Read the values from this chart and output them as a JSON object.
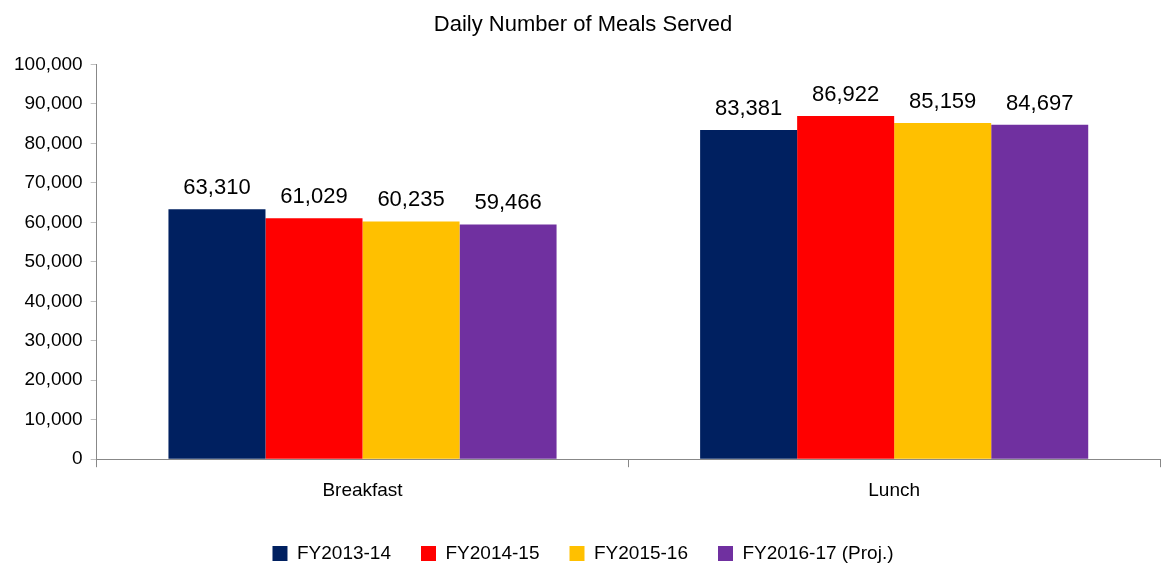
{
  "chart_data": {
    "type": "bar",
    "title": "Daily Number of Meals Served",
    "categories": [
      "Breakfast",
      "Lunch"
    ],
    "series": [
      {
        "name": "FY2013-14",
        "color": "#002060",
        "values": [
          63310,
          83381
        ],
        "value_labels": [
          "63,310",
          "83,381"
        ]
      },
      {
        "name": "FY2014-15",
        "color": "#ff0000",
        "values": [
          61029,
          86922
        ],
        "value_labels": [
          "61,029",
          "86,922"
        ]
      },
      {
        "name": "FY2015-16",
        "color": "#ffc000",
        "values": [
          60235,
          85159
        ],
        "value_labels": [
          "60,235",
          "85,159"
        ]
      },
      {
        "name": "FY2016-17 (Proj.)",
        "color": "#7030a0",
        "values": [
          59466,
          84697
        ],
        "value_labels": [
          "59,466",
          "84,697"
        ]
      }
    ],
    "ylim": [
      0,
      100000
    ],
    "yticks": [
      {
        "value": 0,
        "label": "0"
      },
      {
        "value": 10000,
        "label": "10,000"
      },
      {
        "value": 20000,
        "label": "20,000"
      },
      {
        "value": 30000,
        "label": "30,000"
      },
      {
        "value": 40000,
        "label": "40,000"
      },
      {
        "value": 50000,
        "label": "50,000"
      },
      {
        "value": 60000,
        "label": "60,000"
      },
      {
        "value": 70000,
        "label": "70,000"
      },
      {
        "value": 80000,
        "label": "80,000"
      },
      {
        "value": 90000,
        "label": "90,000"
      },
      {
        "value": 100000,
        "label": "100,000"
      }
    ],
    "grid": false,
    "legend": "bottom"
  }
}
